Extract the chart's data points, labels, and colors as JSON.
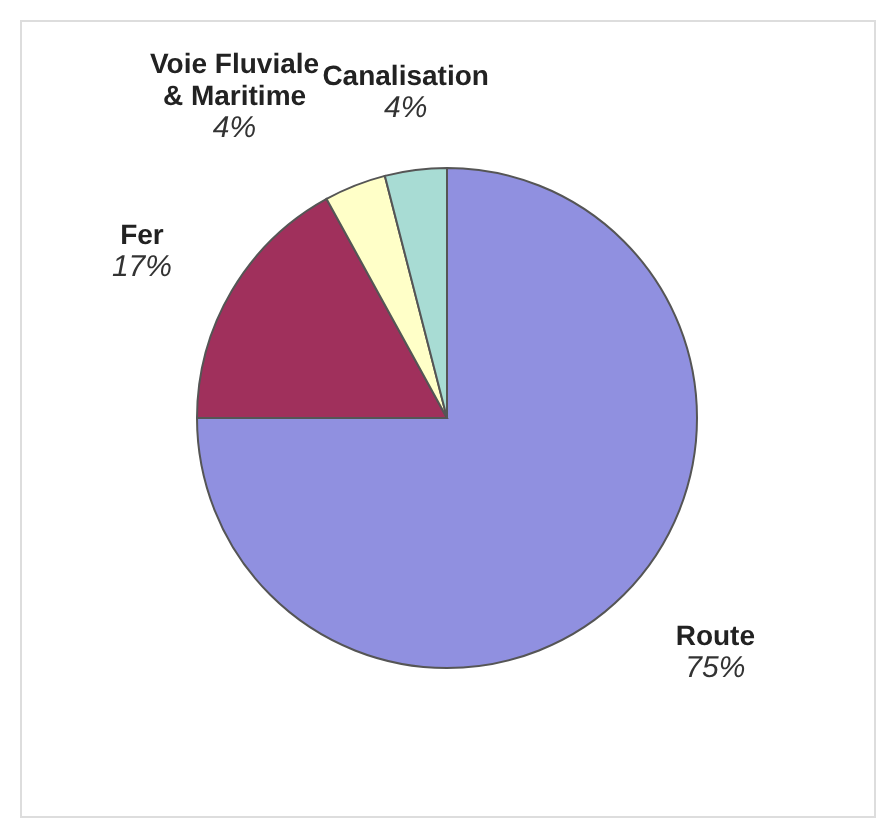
{
  "chart_data": {
    "type": "pie",
    "categories": [
      "Route",
      "Fer",
      "Voie Fluviale & Maritime",
      "Canalisation"
    ],
    "values": [
      75,
      17,
      4,
      4
    ],
    "value_labels": [
      "75%",
      "17%",
      "4%",
      "4%"
    ],
    "colors": [
      "#9090e0",
      "#a0305c",
      "#ffffc8",
      "#a8dcd4"
    ]
  }
}
